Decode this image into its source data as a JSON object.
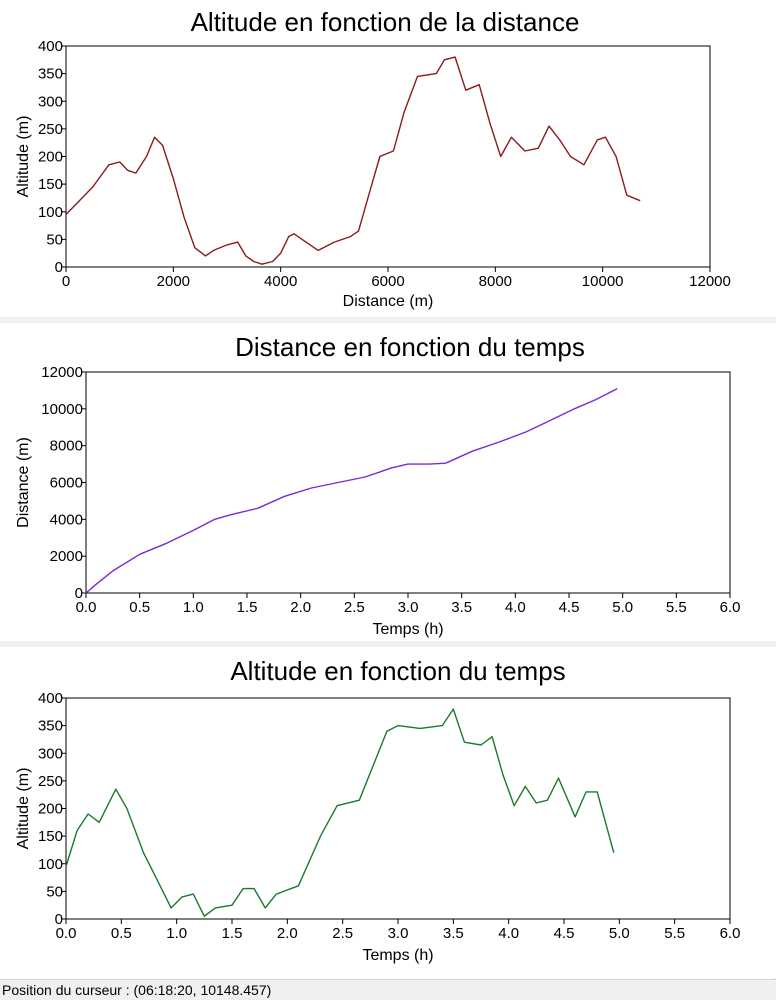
{
  "status": {
    "cursor_text": "Position du curseur : (06:18:20, 10148.457)"
  },
  "chart_data": [
    {
      "type": "line",
      "title": "Altitude en fonction de la distance",
      "xlabel": "Distance (m)",
      "ylabel": "Altitude (m)",
      "xlim": [
        0,
        12000
      ],
      "ylim": [
        0,
        400
      ],
      "xticks": [
        0,
        2000,
        4000,
        6000,
        8000,
        10000,
        12000
      ],
      "xtick_labels": [
        "0",
        "2000",
        "4000",
        "6000",
        "8000",
        "10000",
        "12000"
      ],
      "yticks": [
        0,
        50,
        100,
        150,
        200,
        250,
        300,
        350,
        400
      ],
      "ytick_labels": [
        "0",
        "50",
        "100",
        "150",
        "200",
        "250",
        "300",
        "350",
        "400"
      ],
      "grid": false,
      "color": "#8b1a1a",
      "series": [
        {
          "x": [
            0,
            250,
            500,
            800,
            1000,
            1150,
            1300,
            1500,
            1650,
            1800,
            2000,
            2200,
            2400,
            2600,
            2750,
            3000,
            3200,
            3350,
            3500,
            3650,
            3850,
            4000,
            4150,
            4250,
            4400,
            4550,
            4700,
            5000,
            5300,
            5450,
            5700,
            5850,
            6100,
            6300,
            6550,
            6900,
            7050,
            7250,
            7450,
            7700,
            7900,
            8100,
            8300,
            8550,
            8800,
            9000,
            9200,
            9400,
            9650,
            9900,
            10050,
            10250,
            10450,
            10700
          ],
          "y": [
            95,
            120,
            145,
            185,
            190,
            175,
            170,
            200,
            235,
            220,
            160,
            90,
            35,
            20,
            30,
            40,
            45,
            20,
            10,
            5,
            10,
            25,
            55,
            60,
            50,
            40,
            30,
            45,
            55,
            65,
            150,
            200,
            210,
            280,
            345,
            350,
            375,
            380,
            320,
            330,
            260,
            200,
            235,
            210,
            215,
            255,
            230,
            200,
            185,
            230,
            235,
            200,
            130,
            120
          ]
        }
      ]
    },
    {
      "type": "line",
      "title": "Distance en fonction du temps",
      "xlabel": "Temps (h)",
      "ylabel": "Distance (m)",
      "xlim": [
        0,
        6
      ],
      "ylim": [
        0,
        12000
      ],
      "xticks": [
        0,
        0.5,
        1,
        1.5,
        2,
        2.5,
        3,
        3.5,
        4,
        4.5,
        5,
        5.5,
        6
      ],
      "xtick_labels": [
        "0.0",
        "0.5",
        "1.0",
        "1.5",
        "2.0",
        "2.5",
        "3.0",
        "3.5",
        "4.0",
        "4.5",
        "5.0",
        "5.5",
        "6.0"
      ],
      "yticks": [
        0,
        2000,
        4000,
        6000,
        8000,
        10000,
        12000
      ],
      "ytick_labels": [
        "0",
        "2000",
        "4000",
        "6000",
        "8000",
        "10000",
        "12000"
      ],
      "grid": false,
      "color": "#7a2ad6",
      "series": [
        {
          "x": [
            0,
            0.1,
            0.25,
            0.5,
            0.75,
            1.0,
            1.2,
            1.35,
            1.6,
            1.85,
            2.1,
            2.35,
            2.6,
            2.85,
            3.0,
            3.2,
            3.35,
            3.6,
            3.85,
            4.1,
            4.3,
            4.55,
            4.75,
            4.95
          ],
          "y": [
            0,
            500,
            1200,
            2100,
            2700,
            3400,
            4000,
            4250,
            4600,
            5250,
            5700,
            6000,
            6300,
            6800,
            7000,
            7000,
            7050,
            7700,
            8200,
            8750,
            9300,
            10000,
            10500,
            11100
          ]
        }
      ]
    },
    {
      "type": "line",
      "title": "Altitude en fonction du temps",
      "xlabel": "Temps (h)",
      "ylabel": "Altitude (m)",
      "xlim": [
        0,
        6
      ],
      "ylim": [
        0,
        400
      ],
      "xticks": [
        0,
        0.5,
        1,
        1.5,
        2,
        2.5,
        3,
        3.5,
        4,
        4.5,
        5,
        5.5,
        6
      ],
      "xtick_labels": [
        "0.0",
        "0.5",
        "1.0",
        "1.5",
        "2.0",
        "2.5",
        "3.0",
        "3.5",
        "4.0",
        "4.5",
        "5.0",
        "5.5",
        "6.0"
      ],
      "yticks": [
        0,
        50,
        100,
        150,
        200,
        250,
        300,
        350,
        400
      ],
      "ytick_labels": [
        "0",
        "50",
        "100",
        "150",
        "200",
        "250",
        "300",
        "350",
        "400"
      ],
      "grid": false,
      "color": "#1a7a2a",
      "series": [
        {
          "x": [
            0,
            0.1,
            0.2,
            0.3,
            0.35,
            0.45,
            0.55,
            0.7,
            0.85,
            0.95,
            1.05,
            1.15,
            1.25,
            1.35,
            1.5,
            1.6,
            1.7,
            1.8,
            1.9,
            2.1,
            2.3,
            2.45,
            2.65,
            2.9,
            3.0,
            3.2,
            3.4,
            3.5,
            3.6,
            3.75,
            3.85,
            3.95,
            4.05,
            4.15,
            4.25,
            4.35,
            4.45,
            4.6,
            4.7,
            4.8,
            4.95
          ],
          "y": [
            95,
            160,
            190,
            175,
            195,
            235,
            200,
            120,
            60,
            20,
            40,
            45,
            5,
            20,
            25,
            55,
            55,
            20,
            45,
            60,
            150,
            205,
            215,
            340,
            350,
            345,
            350,
            380,
            320,
            315,
            330,
            260,
            205,
            240,
            210,
            215,
            255,
            185,
            230,
            230,
            120
          ]
        }
      ]
    }
  ]
}
